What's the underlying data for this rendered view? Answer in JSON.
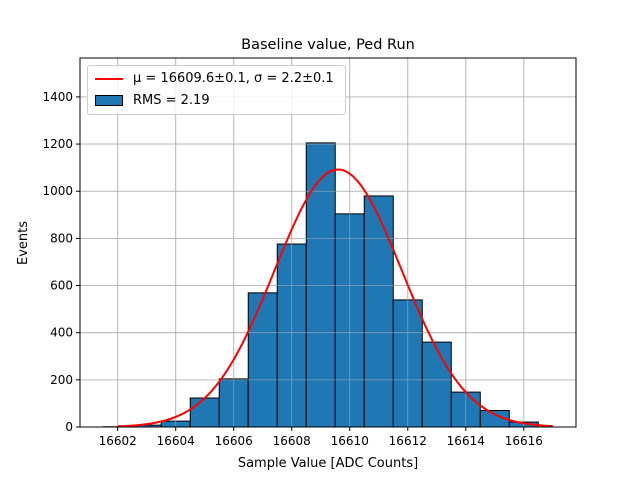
{
  "chart_data": {
    "type": "bar",
    "title": "Baseline value, Ped Run",
    "xlabel": "Sample Value [ADC Counts]",
    "ylabel": "Events",
    "xlim": [
      16600.7,
      16617.8
    ],
    "ylim": [
      0,
      1565
    ],
    "xticks": [
      16602,
      16604,
      16606,
      16608,
      16610,
      16612,
      16614,
      16616
    ],
    "yticks": [
      0,
      200,
      400,
      600,
      800,
      1000,
      1200,
      1400
    ],
    "grid": true,
    "bin_width": 1,
    "bins": [
      16602,
      16603,
      16604,
      16605,
      16606,
      16607,
      16608,
      16609,
      16610,
      16611,
      16612,
      16613,
      16614,
      16615,
      16616
    ],
    "values": [
      1,
      8,
      25,
      123,
      204,
      569,
      776,
      1205,
      904,
      980,
      539,
      360,
      148,
      70,
      21
    ],
    "fit": {
      "type": "gaussian",
      "mu": 16609.6,
      "sigma": 2.2,
      "amplitude": 1092,
      "x_range": [
        16602,
        16617
      ]
    },
    "legend": {
      "placement": "top-left",
      "entries": [
        {
          "label": "μ = 16609.6±0.1, σ = 2.2±0.1",
          "kind": "line"
        },
        {
          "label": "RMS = 2.19",
          "kind": "patch"
        }
      ]
    },
    "colors": {
      "bar": "#1f77b4",
      "fit": "#ff0000",
      "grid": "#b0b0b0"
    }
  }
}
